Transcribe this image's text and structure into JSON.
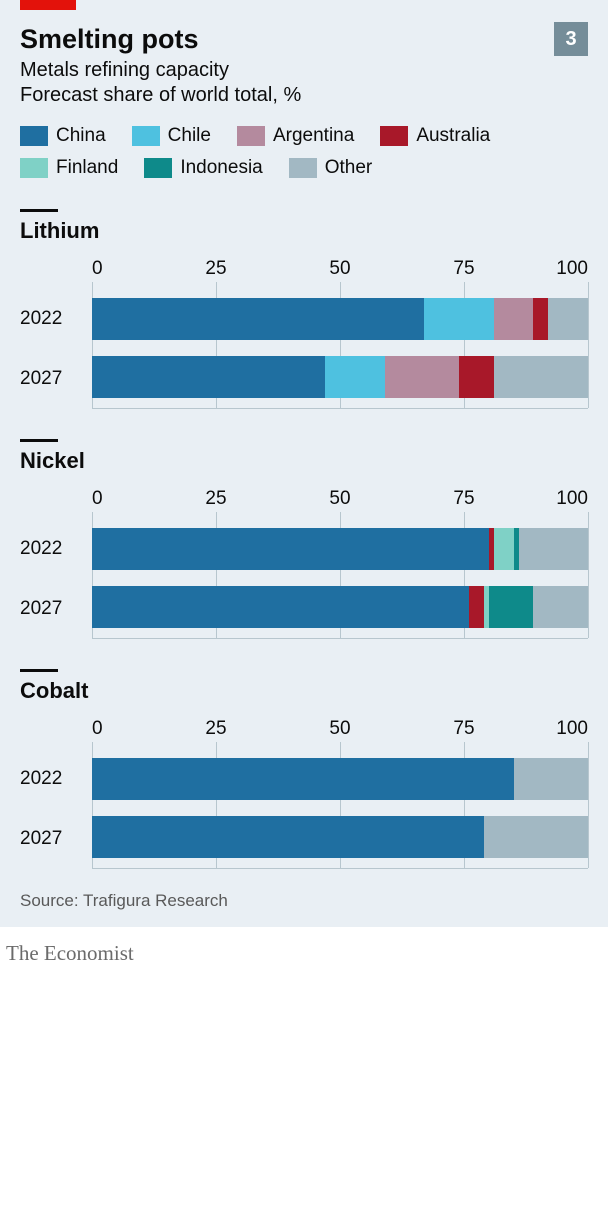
{
  "background_color": "#e9eff4",
  "red_tab_color": "#e3120b",
  "chart_number": "3",
  "chart_number_bg": "#758d99",
  "title": "Smelting pots",
  "subtitle": "Metals refining capacity",
  "subtitle2": "Forecast share of world total, %",
  "title_fontsize": 27,
  "subtitle_fontsize": 20,
  "panel_title_fontsize": 22,
  "axis_fontsize": 19,
  "series": [
    {
      "key": "china",
      "label": "China",
      "color": "#1f6fa1"
    },
    {
      "key": "chile",
      "label": "Chile",
      "color": "#4ec1e0"
    },
    {
      "key": "argentina",
      "label": "Argentina",
      "color": "#b48a9e"
    },
    {
      "key": "australia",
      "label": "Australia",
      "color": "#a81829"
    },
    {
      "key": "finland",
      "label": "Finland",
      "color": "#7fd1c6"
    },
    {
      "key": "indonesia",
      "label": "Indonesia",
      "color": "#0e8a8a"
    },
    {
      "key": "other",
      "label": "Other",
      "color": "#a2b8c3"
    }
  ],
  "axis": {
    "min": 0,
    "max": 100,
    "ticks": [
      0,
      25,
      50,
      75,
      100
    ]
  },
  "gridline_color": "#b7c6ce",
  "panels": [
    {
      "title": "Lithium",
      "rows": [
        {
          "year": "2022",
          "values": {
            "china": 67,
            "chile": 14,
            "argentina": 8,
            "australia": 3,
            "finland": 0,
            "indonesia": 0,
            "other": 8
          }
        },
        {
          "year": "2027",
          "values": {
            "china": 47,
            "chile": 12,
            "argentina": 15,
            "australia": 7,
            "finland": 0,
            "indonesia": 0,
            "other": 19
          }
        }
      ]
    },
    {
      "title": "Nickel",
      "rows": [
        {
          "year": "2022",
          "values": {
            "china": 80,
            "chile": 0,
            "argentina": 0,
            "australia": 1,
            "finland": 4,
            "indonesia": 1,
            "other": 14
          }
        },
        {
          "year": "2027",
          "values": {
            "china": 76,
            "chile": 0,
            "argentina": 0,
            "australia": 3,
            "finland": 1,
            "indonesia": 9,
            "other": 11
          }
        }
      ]
    },
    {
      "title": "Cobalt",
      "rows": [
        {
          "year": "2022",
          "values": {
            "china": 85,
            "chile": 0,
            "argentina": 0,
            "australia": 0,
            "finland": 0,
            "indonesia": 0,
            "other": 15
          }
        },
        {
          "year": "2027",
          "values": {
            "china": 79,
            "chile": 0,
            "argentina": 0,
            "australia": 0,
            "finland": 0,
            "indonesia": 0,
            "other": 21
          }
        }
      ]
    }
  ],
  "source": "Source: Trafigura Research",
  "brand": "The Economist"
}
